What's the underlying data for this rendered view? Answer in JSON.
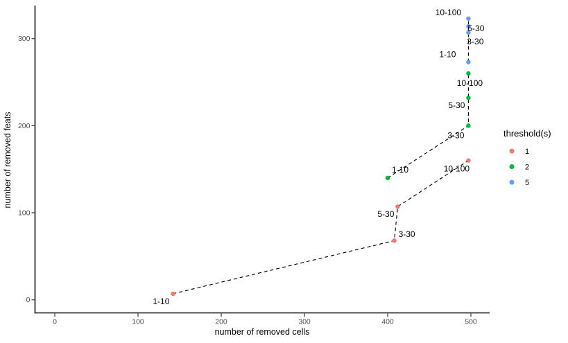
{
  "chart_data": {
    "type": "scatter",
    "title": "",
    "xlabel": "number of removed cells",
    "ylabel": "number of removed feats",
    "x_ticks": [
      0,
      100,
      200,
      300,
      400,
      500
    ],
    "y_ticks": [
      0,
      100,
      200,
      300
    ],
    "x_range": [
      0,
      520
    ],
    "y_range": [
      0,
      335
    ],
    "grid": false,
    "line_style": "dashed",
    "connector_color": "#000000",
    "axis_color": "#333333",
    "tick_label_color": "#4d4d4d",
    "legend": {
      "title": "threshold(s)",
      "position": "right",
      "entries": [
        {
          "label": "1",
          "color": "#F8766D"
        },
        {
          "label": "2",
          "color": "#00BA38"
        },
        {
          "label": "5",
          "color": "#619CFF"
        }
      ]
    },
    "series": [
      {
        "name": "1",
        "color": "#F8766D",
        "points": [
          {
            "x": 142,
            "y": 7,
            "label": "1-10",
            "label_dx": -17,
            "label_dy": 11
          },
          {
            "x": 408,
            "y": 68,
            "label": "3-30",
            "label_dx": 18,
            "label_dy": -9
          },
          {
            "x": 412,
            "y": 107,
            "label": "5-30",
            "label_dx": -17,
            "label_dy": 11
          },
          {
            "x": 497,
            "y": 160,
            "label": "10-100",
            "label_dx": -17,
            "label_dy": 12
          }
        ]
      },
      {
        "name": "2",
        "color": "#00BA38",
        "points": [
          {
            "x": 400,
            "y": 140,
            "label": "1-10",
            "label_dx": 18,
            "label_dy": -12
          },
          {
            "x": 497,
            "y": 200,
            "label": "3-30",
            "label_dx": -18,
            "label_dy": 14
          },
          {
            "x": 497,
            "y": 232,
            "label": "5-30",
            "label_dx": -17,
            "label_dy": 11
          },
          {
            "x": 497,
            "y": 260,
            "label": "10-100",
            "label_dx": 2,
            "label_dy": 14
          }
        ]
      },
      {
        "name": "5",
        "color": "#619CFF",
        "points": [
          {
            "x": 497,
            "y": 273,
            "label": "1-10",
            "label_dx": -30,
            "label_dy": -11
          },
          {
            "x": 497,
            "y": 307,
            "label": "3-30",
            "label_dx": 10,
            "label_dy": 13
          },
          {
            "x": 497,
            "y": 314,
            "label": "5-30",
            "label_dx": 11,
            "label_dy": 3
          },
          {
            "x": 497,
            "y": 323,
            "label": "10-100",
            "label_dx": -29,
            "label_dy": -9
          }
        ]
      }
    ]
  }
}
